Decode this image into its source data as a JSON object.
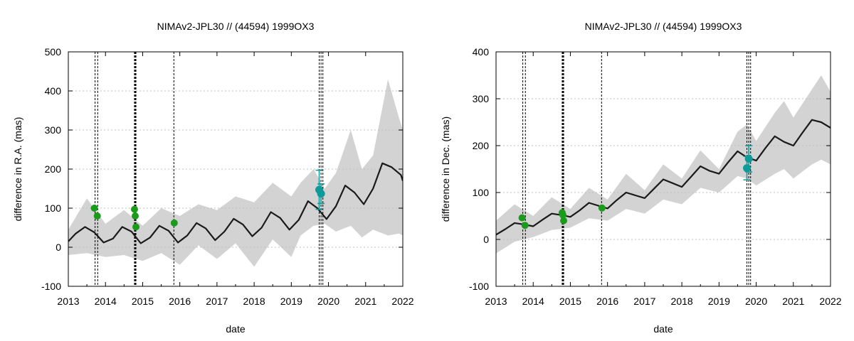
{
  "colors": {
    "band": "#d3d3d3",
    "model_line": "#1a1a1a",
    "obs_green": "#1a9c1a",
    "obs_teal": "#0d9a9a",
    "grid": "#bfbfbf",
    "vline": "#000000"
  },
  "chart_data": [
    {
      "type": "line",
      "title": "NIMAv2-JPL30 // (44594) 1999OX3",
      "xlabel": "date",
      "ylabel": "difference in R.A. (mas)",
      "xlim": [
        2013,
        2022
      ],
      "ylim": [
        -100,
        500
      ],
      "xticks": [
        2013,
        2014,
        2015,
        2016,
        2017,
        2018,
        2019,
        2020,
        2021,
        2022
      ],
      "yticks": [
        -100,
        0,
        100,
        200,
        300,
        400,
        500
      ],
      "grid": "dotted",
      "epoch_lines": [
        2013.72,
        2013.79,
        2014.78,
        2014.8,
        2014.82,
        2015.84,
        2019.75,
        2019.8,
        2019.85
      ],
      "series": [
        {
          "name": "model difference",
          "style": "line",
          "x": [
            2013.0,
            2013.2,
            2013.45,
            2013.7,
            2013.95,
            2014.2,
            2014.45,
            2014.7,
            2014.95,
            2015.2,
            2015.45,
            2015.7,
            2015.95,
            2016.2,
            2016.45,
            2016.7,
            2016.95,
            2017.2,
            2017.45,
            2017.7,
            2017.95,
            2018.2,
            2018.45,
            2018.7,
            2018.95,
            2019.2,
            2019.45,
            2019.7,
            2019.95,
            2020.2,
            2020.45,
            2020.7,
            2020.95,
            2021.2,
            2021.45,
            2021.7,
            2021.95,
            2022.0
          ],
          "y": [
            15,
            35,
            52,
            38,
            12,
            22,
            52,
            40,
            10,
            25,
            55,
            42,
            12,
            30,
            62,
            48,
            18,
            40,
            73,
            58,
            28,
            50,
            90,
            75,
            45,
            70,
            118,
            100,
            72,
            105,
            158,
            140,
            110,
            150,
            215,
            205,
            185,
            170
          ]
        },
        {
          "name": "uncertainty upper",
          "style": "band",
          "x": [
            2013.0,
            2013.5,
            2014.0,
            2014.5,
            2015.0,
            2015.5,
            2016.0,
            2016.5,
            2017.0,
            2017.5,
            2018.0,
            2018.5,
            2019.0,
            2019.25,
            2019.6,
            2019.9,
            2020.2,
            2020.6,
            2020.9,
            2021.2,
            2021.6,
            2021.9,
            2022.0
          ],
          "y": [
            45,
            125,
            60,
            95,
            55,
            100,
            80,
            110,
            95,
            130,
            115,
            165,
            130,
            165,
            200,
            150,
            190,
            300,
            200,
            235,
            430,
            330,
            300
          ]
        },
        {
          "name": "uncertainty lower",
          "style": "band",
          "x": [
            2013.0,
            2013.5,
            2014.0,
            2014.5,
            2015.0,
            2015.5,
            2016.0,
            2016.5,
            2017.0,
            2017.5,
            2018.0,
            2018.5,
            2019.0,
            2019.25,
            2019.6,
            2019.9,
            2020.2,
            2020.6,
            2020.9,
            2021.2,
            2021.6,
            2021.9,
            2022.0
          ],
          "y": [
            -20,
            -15,
            -25,
            -20,
            -35,
            -15,
            -45,
            5,
            -30,
            10,
            -50,
            20,
            -25,
            30,
            55,
            60,
            40,
            55,
            25,
            45,
            30,
            35,
            30
          ]
        },
        {
          "name": "observations (green)",
          "style": "points",
          "x": [
            2013.7,
            2013.78,
            2014.78,
            2014.8,
            2014.82,
            2015.85
          ],
          "y": [
            100,
            80,
            97,
            80,
            52,
            62
          ],
          "xerr": [
            0.05,
            0.05,
            0.05,
            0.05,
            0.05,
            0.06
          ]
        },
        {
          "name": "observations (teal)",
          "style": "points",
          "x": [
            2019.75,
            2019.8
          ],
          "y": [
            147,
            137
          ],
          "yerr": [
            50,
            25
          ]
        }
      ]
    },
    {
      "type": "line",
      "title": "NIMAv2-JPL30 // (44594) 1999OX3",
      "xlabel": "date",
      "ylabel": "difference in Dec. (mas)",
      "xlim": [
        2013,
        2022
      ],
      "ylim": [
        -100,
        400
      ],
      "xticks": [
        2013,
        2014,
        2015,
        2016,
        2017,
        2018,
        2019,
        2020,
        2021,
        2022
      ],
      "yticks": [
        -100,
        0,
        100,
        200,
        300,
        400
      ],
      "grid": "dotted",
      "epoch_lines": [
        2013.72,
        2013.79,
        2014.78,
        2014.8,
        2014.82,
        2015.84,
        2019.75,
        2019.8,
        2019.85
      ],
      "series": [
        {
          "name": "model difference",
          "style": "line",
          "x": [
            2013.0,
            2013.25,
            2013.5,
            2013.75,
            2014.0,
            2014.25,
            2014.5,
            2014.75,
            2015.0,
            2015.25,
            2015.5,
            2015.75,
            2016.0,
            2016.25,
            2016.5,
            2016.75,
            2017.0,
            2017.25,
            2017.5,
            2017.75,
            2018.0,
            2018.25,
            2018.5,
            2018.75,
            2019.0,
            2019.25,
            2019.5,
            2019.75,
            2020.0,
            2020.25,
            2020.5,
            2020.75,
            2021.0,
            2021.25,
            2021.5,
            2021.75,
            2022.0
          ],
          "y": [
            10,
            22,
            35,
            32,
            28,
            42,
            55,
            52,
            48,
            62,
            78,
            72,
            66,
            84,
            100,
            94,
            88,
            108,
            128,
            120,
            112,
            134,
            156,
            146,
            140,
            165,
            188,
            175,
            168,
            195,
            220,
            208,
            200,
            228,
            255,
            250,
            238
          ]
        },
        {
          "name": "uncertainty upper",
          "style": "band",
          "x": [
            2013.0,
            2013.5,
            2014.0,
            2014.5,
            2015.0,
            2015.5,
            2016.0,
            2016.5,
            2017.0,
            2017.5,
            2018.0,
            2018.5,
            2019.0,
            2019.5,
            2019.75,
            2020.0,
            2020.5,
            2020.75,
            2021.0,
            2021.5,
            2021.75,
            2022.0
          ],
          "y": [
            40,
            75,
            50,
            90,
            65,
            110,
            85,
            140,
            105,
            160,
            130,
            190,
            150,
            230,
            245,
            210,
            270,
            295,
            260,
            320,
            350,
            315
          ]
        },
        {
          "name": "uncertainty lower",
          "style": "band",
          "x": [
            2013.0,
            2013.5,
            2014.0,
            2014.5,
            2015.0,
            2015.5,
            2016.0,
            2016.5,
            2017.0,
            2017.5,
            2018.0,
            2018.5,
            2019.0,
            2019.5,
            2019.75,
            2020.0,
            2020.5,
            2020.75,
            2021.0,
            2021.5,
            2021.75,
            2022.0
          ],
          "y": [
            -30,
            -5,
            5,
            20,
            25,
            45,
            40,
            65,
            55,
            85,
            75,
            110,
            100,
            135,
            130,
            115,
            140,
            150,
            130,
            160,
            170,
            160
          ]
        },
        {
          "name": "observations (green)",
          "style": "points",
          "x": [
            2013.7,
            2013.78,
            2014.78,
            2014.8,
            2014.82,
            2015.85
          ],
          "y": [
            46,
            30,
            57,
            52,
            40,
            67
          ],
          "xerr": [
            0.05,
            0.05,
            0.05,
            0.05,
            0.05,
            0.06
          ]
        },
        {
          "name": "observations (teal)",
          "style": "points",
          "x": [
            2019.75,
            2019.8
          ],
          "y": [
            152,
            172
          ],
          "yerr": [
            25,
            28
          ]
        }
      ]
    }
  ]
}
